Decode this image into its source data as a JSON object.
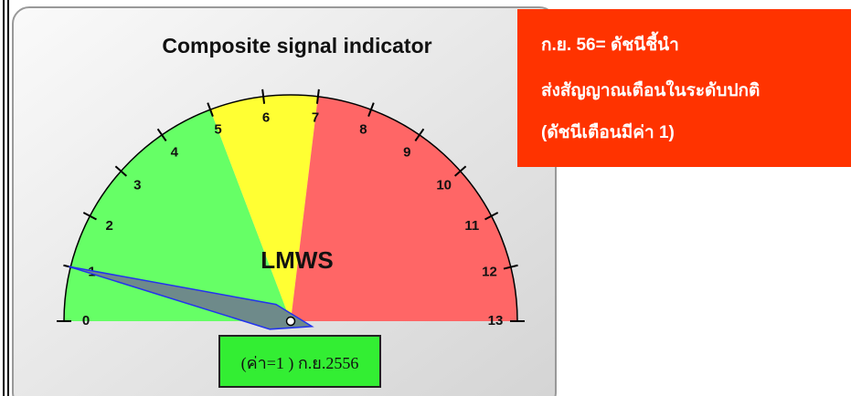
{
  "chart_data": {
    "type": "gauge",
    "title": "Composite signal indicator",
    "center_label": "LMWS",
    "value": 1,
    "value_label": "(ค่า=1 ) ก.ย.2556",
    "range": [
      0,
      13
    ],
    "ticks": [
      0,
      1,
      2,
      3,
      4,
      5,
      6,
      7,
      8,
      9,
      10,
      11,
      12,
      13
    ],
    "bands": [
      {
        "from": 0,
        "to": 5,
        "color": "#66ff66"
      },
      {
        "from": 5,
        "to": 7,
        "color": "#ffff33"
      },
      {
        "from": 7,
        "to": 13,
        "color": "#ff6666"
      }
    ],
    "needle_color": "#6e8a8a",
    "annotation": [
      "ก.ย. 56= ดัชนีชี้นำ",
      "ส่งสัญญาณเตือนในระดับปกติ",
      "(ดัชนีเตือนมีค่า 1)"
    ]
  }
}
